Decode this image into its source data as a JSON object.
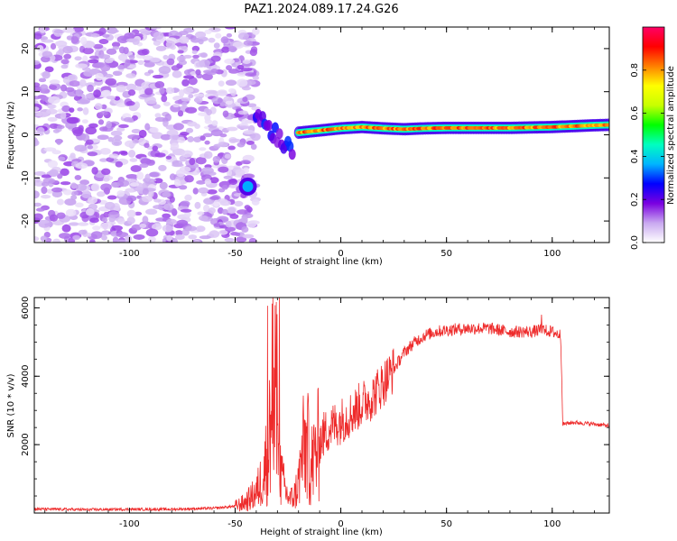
{
  "title": "PAZ1.2024.089.17.24.G26",
  "chart_data": [
    {
      "type": "heatmap",
      "title": "PAZ1.2024.089.17.24.G26",
      "xlabel": "Height of straight line (km)",
      "ylabel": "Frequency (Hz)",
      "xlim": [
        -145,
        127
      ],
      "ylim": [
        -25,
        25
      ],
      "x_ticks": [
        -100,
        -50,
        0,
        50,
        100
      ],
      "y_ticks": [
        20,
        10,
        0,
        -10,
        -20
      ],
      "grid": false,
      "colorbar": {
        "label": "Normalized spectral amplitude",
        "range": [
          0,
          1
        ],
        "ticks": [
          0.0,
          0.2,
          0.4,
          0.6,
          0.8
        ],
        "colormap": [
          "#ffffff",
          "#c9a8f0",
          "#7a00e0",
          "#0000ff",
          "#00b4ff",
          "#00ffc0",
          "#00ff00",
          "#c8ff00",
          "#ffff00",
          "#ff8000",
          "#ff0000",
          "#ff0066"
        ]
      },
      "features": [
        {
          "name": "noise",
          "x_range": [
            -145,
            -50
          ],
          "y_range": [
            -25,
            25
          ],
          "amplitude": 0.1
        },
        {
          "name": "carrier",
          "x": [
            -20,
            -10,
            0,
            10,
            20,
            30,
            40,
            50,
            60,
            70,
            80,
            90,
            100,
            110,
            120,
            127
          ],
          "y": [
            0.5,
            1.0,
            1.5,
            1.8,
            1.5,
            1.3,
            1.5,
            1.6,
            1.6,
            1.6,
            1.6,
            1.7,
            1.8,
            2.0,
            2.2,
            2.3
          ],
          "amplitude": 0.75
        },
        {
          "name": "multipath-blob",
          "x": -44,
          "y": -12,
          "amplitude": 0.3
        },
        {
          "name": "multipath-streak",
          "x": [
            -40,
            -34,
            -28,
            -22
          ],
          "y": [
            5,
            2,
            -1,
            -4
          ],
          "amplitude": 0.25
        }
      ]
    },
    {
      "type": "line",
      "xlabel": "Height of straight line (km)",
      "ylabel": "SNR (10 * v/v)",
      "xlim": [
        -145,
        127
      ],
      "ylim": [
        0,
        6300
      ],
      "x_ticks": [
        -100,
        -50,
        0,
        50,
        100
      ],
      "y_ticks": [
        2000,
        4000,
        6000
      ],
      "grid": false,
      "color": "#ee2a2a",
      "series": [
        {
          "x": [
            -145,
            -120,
            -100,
            -80,
            -60,
            -50,
            -45,
            -40,
            -38,
            -36,
            -34,
            -32,
            -30,
            -28,
            -26,
            -24,
            -22,
            -20,
            -18,
            -16,
            -14,
            -12,
            -10,
            -8,
            -5,
            0,
            5,
            10,
            15,
            20,
            25,
            30,
            35,
            40,
            45,
            50,
            60,
            70,
            80,
            90,
            95,
            100,
            104,
            105,
            110,
            120,
            127
          ],
          "y": [
            120,
            100,
            110,
            110,
            140,
            200,
            320,
            600,
            900,
            1300,
            2200,
            2500,
            1900,
            1000,
            600,
            400,
            500,
            900,
            1800,
            2000,
            1400,
            1700,
            2100,
            2300,
            2500,
            2700,
            2900,
            3200,
            3400,
            3800,
            4200,
            4700,
            5000,
            5200,
            5300,
            5350,
            5400,
            5400,
            5300,
            5300,
            5350,
            5300,
            5200,
            2600,
            2650,
            2600,
            2550
          ]
        }
      ]
    }
  ]
}
